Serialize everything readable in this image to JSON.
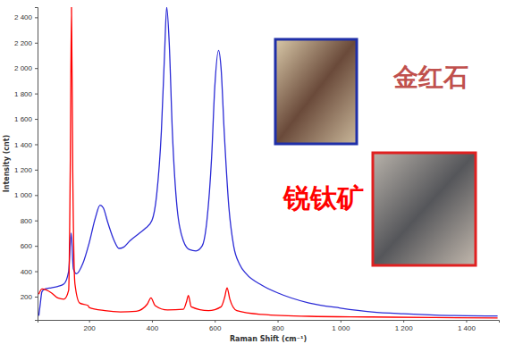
{
  "chart_data": {
    "type": "line",
    "xlabel": "Raman Shift (cm⁻¹)",
    "ylabel": "Intensity (cnt)",
    "xlim": [
      36,
      1504
    ],
    "ylim": [
      17,
      2480
    ],
    "xticks": [
      200,
      400,
      600,
      800,
      {
        "value": 1000,
        "label": "1 000"
      },
      {
        "value": 1200,
        "label": "1 200"
      },
      {
        "value": 1400,
        "label": "1 400"
      }
    ],
    "yticks": [
      200,
      400,
      600,
      800,
      {
        "value": 1000,
        "label": "1 000"
      },
      {
        "value": 1200,
        "label": "1 200"
      },
      {
        "value": 1400,
        "label": "1 400"
      },
      {
        "value": 1600,
        "label": "1 600"
      },
      {
        "value": 1800,
        "label": "1 800"
      },
      {
        "value": 2000,
        "label": "2 000"
      },
      {
        "value": 2200,
        "label": "2 200"
      },
      {
        "value": 2400,
        "label": "2 400"
      }
    ],
    "grid": false,
    "series": [
      {
        "name": "金红石",
        "color": "#2b2bd6",
        "x": [
          40,
          45,
          50,
          60,
          80,
          100,
          120,
          135,
          143,
          150,
          160,
          180,
          200,
          220,
          235,
          245,
          260,
          280,
          295,
          310,
          330,
          360,
          380,
          400,
          415,
          430,
          440,
          447,
          455,
          465,
          480,
          500,
          520,
          540,
          560,
          575,
          590,
          600,
          612,
          620,
          630,
          645,
          660,
          680,
          700,
          750,
          800,
          900,
          1000,
          1100,
          1200,
          1300,
          1400,
          1500
        ],
        "values": [
          50,
          150,
          240,
          260,
          270,
          280,
          300,
          400,
          700,
          420,
          380,
          460,
          620,
          820,
          920,
          900,
          780,
          640,
          580,
          590,
          640,
          700,
          740,
          800,
          1000,
          1500,
          2100,
          2480,
          2200,
          1500,
          900,
          640,
          570,
          560,
          600,
          800,
          1300,
          1850,
          2140,
          2000,
          1500,
          900,
          600,
          450,
          380,
          290,
          230,
          150,
          110,
          80,
          65,
          55,
          50,
          48
        ]
      },
      {
        "name": "锐钛矿",
        "color": "#ff0000",
        "x": [
          40,
          50,
          80,
          100,
          120,
          135,
          140,
          144,
          148,
          155,
          170,
          197,
          200,
          250,
          300,
          350,
          385,
          397,
          410,
          450,
          500,
          510,
          516,
          525,
          580,
          620,
          632,
          639,
          648,
          670,
          750,
          900,
          1100,
          1300,
          1500
        ],
        "values": [
          220,
          260,
          230,
          190,
          180,
          250,
          1200,
          2480,
          1200,
          300,
          150,
          130,
          115,
          90,
          80,
          85,
          140,
          190,
          130,
          95,
          100,
          160,
          210,
          120,
          90,
          120,
          200,
          270,
          180,
          90,
          60,
          45,
          40,
          35,
          32
        ]
      }
    ]
  }
}
